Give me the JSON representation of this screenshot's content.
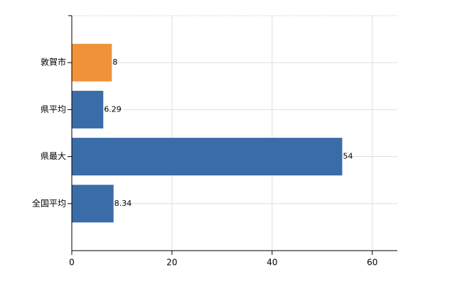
{
  "chart_data": {
    "type": "hbar",
    "categories": [
      "敦賀市",
      "県平均",
      "県最大",
      "全国平均"
    ],
    "values": [
      8,
      6.29,
      54,
      8.34
    ],
    "colors": [
      "#f0923a",
      "#3a6ca8",
      "#3a6ca8",
      "#3a6ca8"
    ],
    "xlim": [
      0,
      65
    ],
    "xticks": [
      0,
      20,
      40,
      60
    ],
    "grid": true
  }
}
